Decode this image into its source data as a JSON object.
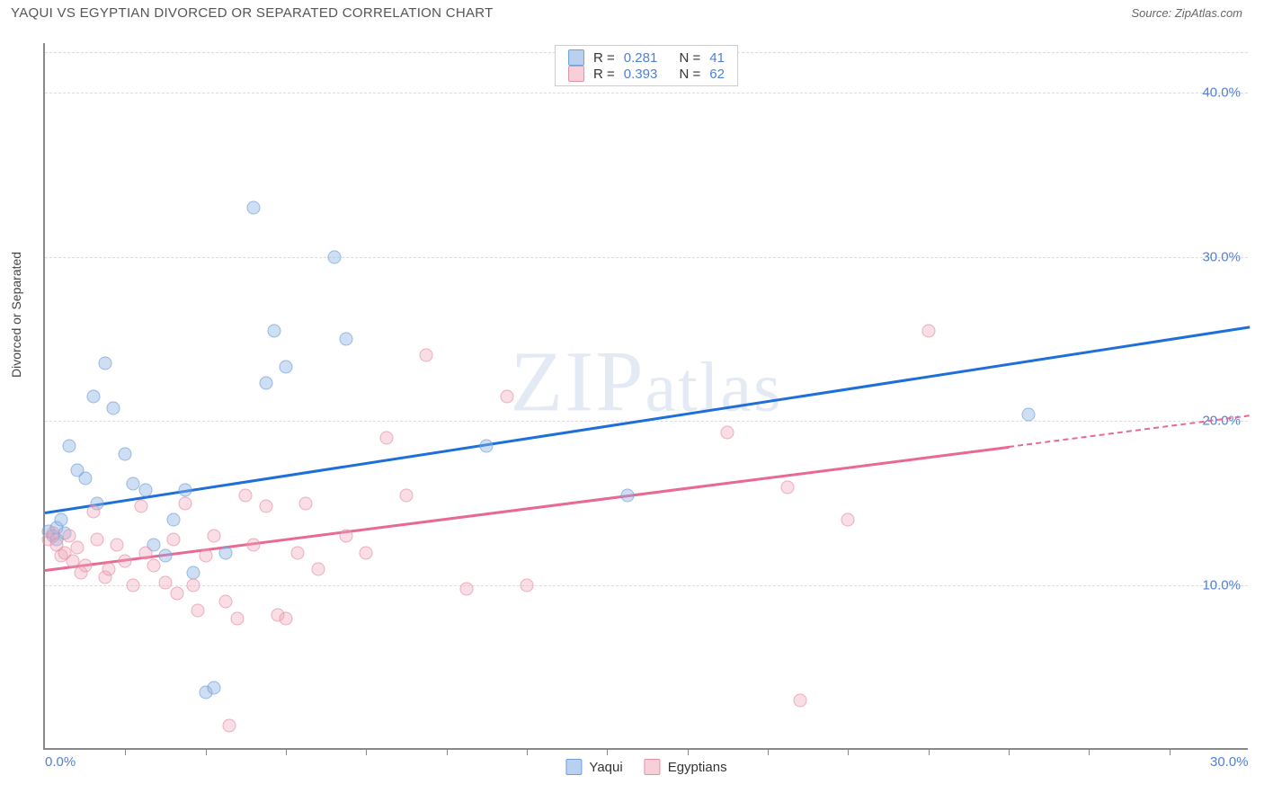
{
  "header": {
    "title": "YAQUI VS EGYPTIAN DIVORCED OR SEPARATED CORRELATION CHART",
    "source": "Source: ZipAtlas.com"
  },
  "chart": {
    "type": "scatter",
    "ylabel": "Divorced or Separated",
    "watermark": "ZIPatlas",
    "background_color": "#ffffff",
    "grid_color": "#dddddd",
    "axis_color": "#888888",
    "tick_color": "#4f7fd8",
    "xlim": [
      0,
      30
    ],
    "ylim": [
      0,
      43
    ],
    "xtick_major": [
      0,
      30
    ],
    "xtick_minor": [
      2,
      4,
      6,
      8,
      10,
      12,
      14,
      16,
      18,
      20,
      22,
      24,
      26,
      28
    ],
    "ytick_labels": [
      {
        "v": 10,
        "label": "10.0%"
      },
      {
        "v": 20,
        "label": "20.0%"
      },
      {
        "v": 30,
        "label": "30.0%"
      },
      {
        "v": 40,
        "label": "40.0%"
      }
    ],
    "xtick_labels": [
      {
        "v": 0,
        "label": "0.0%"
      },
      {
        "v": 30,
        "label": "30.0%"
      }
    ],
    "series": [
      {
        "name": "Yaqui",
        "color_fill": "rgba(139,177,226,0.55)",
        "color_stroke": "#6fa0db",
        "line_color": "#1e6fd9",
        "r": "0.281",
        "n": "41",
        "trend": {
          "x0": 0,
          "y0": 14.5,
          "x1": 30,
          "y1": 25.8
        },
        "points": [
          [
            0.1,
            13.3
          ],
          [
            0.2,
            13.0
          ],
          [
            0.3,
            12.8
          ],
          [
            0.3,
            13.5
          ],
          [
            0.4,
            14.0
          ],
          [
            0.5,
            13.2
          ],
          [
            0.6,
            18.5
          ],
          [
            0.8,
            17.0
          ],
          [
            1.0,
            16.5
          ],
          [
            1.2,
            21.5
          ],
          [
            1.3,
            15.0
          ],
          [
            1.5,
            23.5
          ],
          [
            1.7,
            20.8
          ],
          [
            2.0,
            18.0
          ],
          [
            2.2,
            16.2
          ],
          [
            2.5,
            15.8
          ],
          [
            2.7,
            12.5
          ],
          [
            3.0,
            11.8
          ],
          [
            3.2,
            14.0
          ],
          [
            3.5,
            15.8
          ],
          [
            3.7,
            10.8
          ],
          [
            4.0,
            3.5
          ],
          [
            4.2,
            3.8
          ],
          [
            4.5,
            12.0
          ],
          [
            5.2,
            33.0
          ],
          [
            5.5,
            22.3
          ],
          [
            5.7,
            25.5
          ],
          [
            6.0,
            23.3
          ],
          [
            7.2,
            30.0
          ],
          [
            7.5,
            25.0
          ],
          [
            11.0,
            18.5
          ],
          [
            14.5,
            15.5
          ],
          [
            24.5,
            20.4
          ]
        ]
      },
      {
        "name": "Egyptians",
        "color_fill": "rgba(240,167,186,0.5)",
        "color_stroke": "#e690a8",
        "line_color": "#e86a94",
        "r": "0.393",
        "n": "62",
        "trend": {
          "x0": 0,
          "y0": 11.0,
          "x1": 24,
          "y1": 18.5
        },
        "trend_dash": {
          "x0": 24,
          "y0": 18.5,
          "x1": 30,
          "y1": 20.4
        },
        "points": [
          [
            0.1,
            12.8
          ],
          [
            0.2,
            13.2
          ],
          [
            0.3,
            12.5
          ],
          [
            0.4,
            11.8
          ],
          [
            0.5,
            12.0
          ],
          [
            0.6,
            13.0
          ],
          [
            0.7,
            11.5
          ],
          [
            0.8,
            12.3
          ],
          [
            0.9,
            10.8
          ],
          [
            1.0,
            11.2
          ],
          [
            1.2,
            14.5
          ],
          [
            1.3,
            12.8
          ],
          [
            1.5,
            10.5
          ],
          [
            1.6,
            11.0
          ],
          [
            1.8,
            12.5
          ],
          [
            2.0,
            11.5
          ],
          [
            2.2,
            10.0
          ],
          [
            2.4,
            14.8
          ],
          [
            2.5,
            12.0
          ],
          [
            2.7,
            11.2
          ],
          [
            3.0,
            10.2
          ],
          [
            3.2,
            12.8
          ],
          [
            3.3,
            9.5
          ],
          [
            3.5,
            15.0
          ],
          [
            3.7,
            10.0
          ],
          [
            3.8,
            8.5
          ],
          [
            4.0,
            11.8
          ],
          [
            4.2,
            13.0
          ],
          [
            4.5,
            9.0
          ],
          [
            4.6,
            1.5
          ],
          [
            4.8,
            8.0
          ],
          [
            5.0,
            15.5
          ],
          [
            5.2,
            12.5
          ],
          [
            5.5,
            14.8
          ],
          [
            5.8,
            8.2
          ],
          [
            6.0,
            8.0
          ],
          [
            6.3,
            12.0
          ],
          [
            6.5,
            15.0
          ],
          [
            6.8,
            11.0
          ],
          [
            7.5,
            13.0
          ],
          [
            8.0,
            12.0
          ],
          [
            8.5,
            19.0
          ],
          [
            9.0,
            15.5
          ],
          [
            9.5,
            24.0
          ],
          [
            10.5,
            9.8
          ],
          [
            11.5,
            21.5
          ],
          [
            12.0,
            10.0
          ],
          [
            17.0,
            19.3
          ],
          [
            18.5,
            16.0
          ],
          [
            18.8,
            3.0
          ],
          [
            20.0,
            14.0
          ],
          [
            22.0,
            25.5
          ]
        ]
      }
    ],
    "legend_top": {
      "r_label": "R =",
      "n_label": "N ="
    },
    "legend_bottom": [
      {
        "swatch": "blue",
        "label": "Yaqui"
      },
      {
        "swatch": "pink",
        "label": "Egyptians"
      }
    ]
  }
}
